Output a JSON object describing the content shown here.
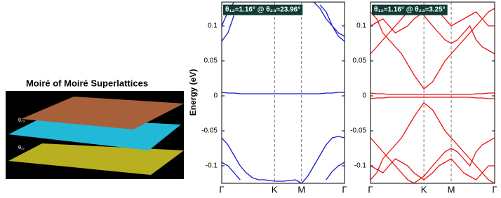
{
  "illustration": {
    "title": "Moiré of Moiré Superlattices",
    "labels": [
      "θ₂₃",
      "θ₁₂"
    ]
  },
  "chart_data": [
    {
      "type": "line",
      "title": "θ₁₂≈1.16° @ θ₂₃≈23.96°",
      "y_label": "Energy (eV)",
      "x": [
        0,
        0.05,
        0.1,
        0.15,
        0.2,
        0.25,
        0.3,
        0.35,
        0.43,
        0.5,
        0.55,
        0.6,
        0.65,
        0.7,
        0.75,
        0.8,
        0.85,
        0.9,
        0.95,
        1
      ],
      "xlim": [
        0,
        1
      ],
      "ylim": [
        -0.125,
        0.134
      ],
      "xticks": [
        {
          "value": 0,
          "label": "Γ"
        },
        {
          "value": 0.43,
          "label": "K"
        },
        {
          "value": 0.65,
          "label": "M"
        },
        {
          "value": 1,
          "label": "Γ"
        }
      ],
      "yticks": [
        -0.1,
        -0.05,
        0,
        0.05,
        0.1
      ],
      "series": [
        {
          "color": "#1a1acc",
          "values": [
            0.005,
            0.004,
            0.004,
            0.003,
            0.003,
            0.003,
            0.003,
            0.003,
            0.003,
            0.003,
            0.003,
            0.003,
            0.003,
            0.003,
            0.003,
            0.003,
            0.004,
            0.004,
            0.005,
            0.005
          ]
        },
        {
          "color": "#1a1acc",
          "values": [
            0.078,
            0.09,
            0.115,
            null,
            null,
            null,
            null,
            null,
            null,
            null,
            null,
            null,
            null,
            null,
            null,
            null,
            null,
            null,
            null,
            null
          ]
        },
        {
          "color": "#1a1acc",
          "values": [
            0.1,
            0.12,
            0.134,
            null,
            null,
            null,
            null,
            null,
            null,
            null,
            null,
            null,
            null,
            null,
            null,
            null,
            null,
            null,
            null,
            null
          ]
        },
        {
          "color": "#1a1acc",
          "values": [
            null,
            null,
            null,
            null,
            null,
            null,
            null,
            null,
            null,
            null,
            null,
            null,
            null,
            null,
            null,
            0.13,
            0.12,
            0.1,
            0.085,
            0.078
          ]
        },
        {
          "color": "#1a1acc",
          "values": [
            null,
            null,
            null,
            null,
            null,
            null,
            null,
            null,
            null,
            null,
            null,
            null,
            null,
            null,
            0.134,
            0.125,
            0.11,
            0.1,
            0.09,
            0.085
          ]
        },
        {
          "color": "#1a1acc",
          "values": [
            -0.06,
            -0.07,
            -0.085,
            -0.1,
            -0.11,
            -0.117,
            -0.12,
            -0.12,
            -0.122,
            -0.122,
            -0.121,
            -0.12,
            -0.125,
            -0.115,
            -0.1,
            -0.085,
            -0.07,
            -0.06,
            -0.058,
            -0.06
          ]
        },
        {
          "color": "#1a1acc",
          "values": [
            -0.095,
            -0.1,
            -0.11,
            -0.12,
            null,
            null,
            null,
            null,
            null,
            null,
            null,
            null,
            null,
            null,
            null,
            null,
            -0.12,
            -0.108,
            -0.1,
            -0.095
          ]
        }
      ]
    },
    {
      "type": "line",
      "title": "θ₁₂≈1.16° @ θ₂₃≈3.25°",
      "x": [
        0,
        0.05,
        0.1,
        0.15,
        0.2,
        0.25,
        0.3,
        0.35,
        0.43,
        0.5,
        0.55,
        0.6,
        0.65,
        0.7,
        0.75,
        0.8,
        0.85,
        0.9,
        0.95,
        1
      ],
      "xlim": [
        0,
        1
      ],
      "ylim": [
        -0.125,
        0.134
      ],
      "xticks": [
        {
          "value": 0,
          "label": "Γ"
        },
        {
          "value": 0.43,
          "label": "K"
        },
        {
          "value": 0.65,
          "label": "M"
        },
        {
          "value": 1,
          "label": "Γ"
        }
      ],
      "yticks": [
        -0.1,
        -0.05,
        0,
        0.05,
        0.1
      ],
      "series": [
        {
          "color": "#ee1111",
          "values": [
            0.004,
            0.003,
            0.003,
            0.002,
            0.002,
            0.002,
            0.002,
            0.002,
            0.002,
            0.002,
            0.002,
            0.002,
            0.002,
            0.002,
            0.002,
            0.002,
            0.003,
            0.003,
            0.004,
            0.004
          ]
        },
        {
          "color": "#ee1111",
          "values": [
            -0.004,
            -0.003,
            -0.003,
            -0.002,
            -0.002,
            -0.002,
            -0.002,
            -0.002,
            -0.002,
            -0.002,
            -0.002,
            -0.002,
            -0.002,
            -0.002,
            -0.002,
            -0.002,
            -0.003,
            -0.003,
            -0.004,
            -0.004
          ]
        },
        {
          "color": "#ee1111",
          "values": [
            0.12,
            0.11,
            0.09,
            0.08,
            0.07,
            0.06,
            0.045,
            0.03,
            0.01,
            0.02,
            0.035,
            0.05,
            0.06,
            0.07,
            0.08,
            0.09,
            0.1,
            0.11,
            0.12,
            0.125
          ]
        },
        {
          "color": "#ee1111",
          "values": [
            0.1,
            0.105,
            0.11,
            0.1,
            0.09,
            0.095,
            0.1,
            0.11,
            0.12,
            0.125,
            0.12,
            0.11,
            0.1,
            0.105,
            0.11,
            0.115,
            0.12,
            0.11,
            0.1,
            0.1
          ]
        },
        {
          "color": "#ee1111",
          "values": [
            0.06,
            0.07,
            0.08,
            0.09,
            0.1,
            0.11,
            0.12,
            0.125,
            0.115,
            0.1,
            0.09,
            0.08,
            0.075,
            0.08,
            0.09,
            0.1,
            0.08,
            0.07,
            0.065,
            0.06
          ]
        },
        {
          "color": "#ee1111",
          "values": [
            -0.12,
            -0.11,
            -0.09,
            -0.08,
            -0.07,
            -0.06,
            -0.045,
            -0.03,
            -0.01,
            -0.02,
            -0.035,
            -0.05,
            -0.06,
            -0.07,
            -0.08,
            -0.09,
            -0.1,
            -0.11,
            -0.12,
            -0.125
          ]
        },
        {
          "color": "#ee1111",
          "values": [
            -0.1,
            -0.105,
            -0.11,
            -0.1,
            -0.09,
            -0.095,
            -0.1,
            -0.11,
            -0.12,
            -0.11,
            -0.1,
            -0.095,
            -0.09,
            -0.1,
            -0.11,
            -0.115,
            -0.12,
            -0.11,
            -0.1,
            -0.1
          ]
        },
        {
          "color": "#ee1111",
          "values": [
            -0.06,
            -0.07,
            -0.08,
            -0.09,
            -0.1,
            -0.11,
            -0.12,
            -0.125,
            -0.115,
            -0.1,
            -0.09,
            -0.08,
            -0.075,
            -0.08,
            -0.09,
            -0.1,
            -0.08,
            -0.07,
            -0.065,
            -0.06
          ]
        }
      ]
    }
  ]
}
